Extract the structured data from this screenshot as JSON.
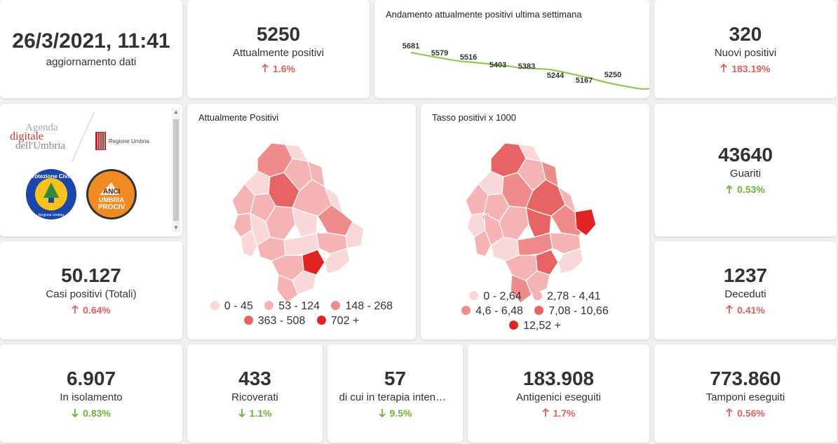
{
  "datetime": {
    "value": "26/3/2021, 11:41",
    "label": "aggiornamento dati"
  },
  "attualmente_positivi": {
    "value": "5250",
    "label": "Attualmente positivi",
    "trend": "1.6%",
    "direction": "up"
  },
  "trend_chart": {
    "title": "Andamento attualmente positivi ultima settimana",
    "labels": [
      "5681",
      "5579",
      "5516",
      "5403",
      "5383",
      "5244",
      "5167",
      "5250"
    ]
  },
  "nuovi_positivi": {
    "value": "320",
    "label": "Nuovi positivi",
    "trend": "183.19%",
    "direction": "up"
  },
  "logos": {
    "agenda_line1": "Agenda",
    "agenda_line2": "digitale",
    "agenda_line3": "dell'Umbria",
    "regione": "Regione Umbria",
    "protezione_top": "Protezione Civile",
    "protezione_bottom": "Regione Umbria",
    "anci_line1": "ANCI",
    "anci_line2": "UMBRIA",
    "anci_line3": "PROCIV"
  },
  "map_positivi": {
    "title": "Attualmente Positivi",
    "legend": [
      {
        "label": "0 - 45",
        "color": "#fbd8d8"
      },
      {
        "label": "53 - 124",
        "color": "#f6b3b3"
      },
      {
        "label": "148 - 268",
        "color": "#ef8b8b"
      },
      {
        "label": "363 - 508",
        "color": "#e86464"
      },
      {
        "label": "702 +",
        "color": "#e02424"
      }
    ]
  },
  "map_tasso": {
    "title": "Tasso positivi x 1000",
    "legend": [
      {
        "label": "0 - 2,64",
        "color": "#fbd8d8"
      },
      {
        "label": "2,78 - 4,41",
        "color": "#f6b3b3"
      },
      {
        "label": "4,6 - 6,48",
        "color": "#ef8b8b"
      },
      {
        "label": "7,08 - 10,66",
        "color": "#e86464"
      },
      {
        "label": "12,52 +",
        "color": "#e02424"
      }
    ]
  },
  "guariti": {
    "value": "43640",
    "label": "Guariti",
    "trend": "0.53%",
    "direction": "up"
  },
  "casi_totali": {
    "value": "50.127",
    "label": "Casi positivi (Totali)",
    "trend": "0.64%",
    "direction": "up"
  },
  "deceduti": {
    "value": "1237",
    "label": "Deceduti",
    "trend": "0.41%",
    "direction": "up"
  },
  "isolamento": {
    "value": "6.907",
    "label": "In isolamento",
    "trend": "0.83%",
    "direction": "down"
  },
  "ricoverati": {
    "value": "433",
    "label": "Ricoverati",
    "trend": "1.1%",
    "direction": "down"
  },
  "terapia_intensiva": {
    "value": "57",
    "label": "di cui in terapia intensiva",
    "trend": "9.5%",
    "direction": "down"
  },
  "antigenici": {
    "value": "183.908",
    "label": "Antigenici eseguiti",
    "trend": "1.7%",
    "direction": "up"
  },
  "tamponi": {
    "value": "773.860",
    "label": "Tamponi eseguiti",
    "trend": "0.56%",
    "direction": "up"
  },
  "colors": {
    "up": "#e0605e",
    "down": "#6fb13b",
    "line": "#8cc63f"
  }
}
